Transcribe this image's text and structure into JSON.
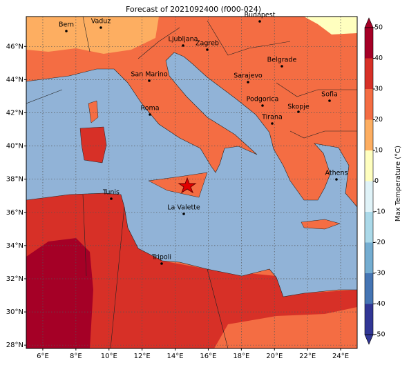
{
  "title": "Forecast of 2021092400 (f000-024)",
  "lon_range": [
    5,
    25
  ],
  "lat_range": [
    27.8,
    47.8
  ],
  "lon_ticks": [
    {
      "value": 6,
      "label": "6°E"
    },
    {
      "value": 8,
      "label": "8°E"
    },
    {
      "value": 10,
      "label": "10°E"
    },
    {
      "value": 12,
      "label": "12°E"
    },
    {
      "value": 14,
      "label": "14°E"
    },
    {
      "value": 16,
      "label": "16°E"
    },
    {
      "value": 18,
      "label": "18°E"
    },
    {
      "value": 20,
      "label": "20°E"
    },
    {
      "value": 22,
      "label": "22°E"
    },
    {
      "value": 24,
      "label": "24°E"
    }
  ],
  "lat_ticks": [
    {
      "value": 28,
      "label": "28°N"
    },
    {
      "value": 30,
      "label": "30°N"
    },
    {
      "value": 32,
      "label": "32°N"
    },
    {
      "value": 34,
      "label": "34°N"
    },
    {
      "value": 36,
      "label": "36°N"
    },
    {
      "value": 38,
      "label": "38°N"
    },
    {
      "value": 40,
      "label": "40°N"
    },
    {
      "value": 42,
      "label": "42°N"
    },
    {
      "value": 44,
      "label": "44°N"
    },
    {
      "value": 46,
      "label": "46°N"
    }
  ],
  "cities": [
    "Bern",
    "Vaduz",
    "Budapest",
    "Ljubljana",
    "Zagreb",
    "Belgrade",
    "San Marino",
    "Sarajevo",
    "Sofia",
    "Podgorica",
    "Skopje",
    "Tirana",
    "Roma",
    "Athens",
    "Tunis",
    "La Valette",
    "Tripoli"
  ],
  "colorbar": {
    "label": "Max Temperature (°C)",
    "ticks": [
      -50,
      -40,
      -30,
      -20,
      -10,
      0,
      10,
      20,
      30,
      40,
      50
    ],
    "colors": [
      "#313695",
      "#4575b4",
      "#74add1",
      "#abd9e9",
      "#e0f3f8",
      "#ffffbf",
      "#fdae61",
      "#f46d43",
      "#d73027",
      "#a50026"
    ]
  }
}
